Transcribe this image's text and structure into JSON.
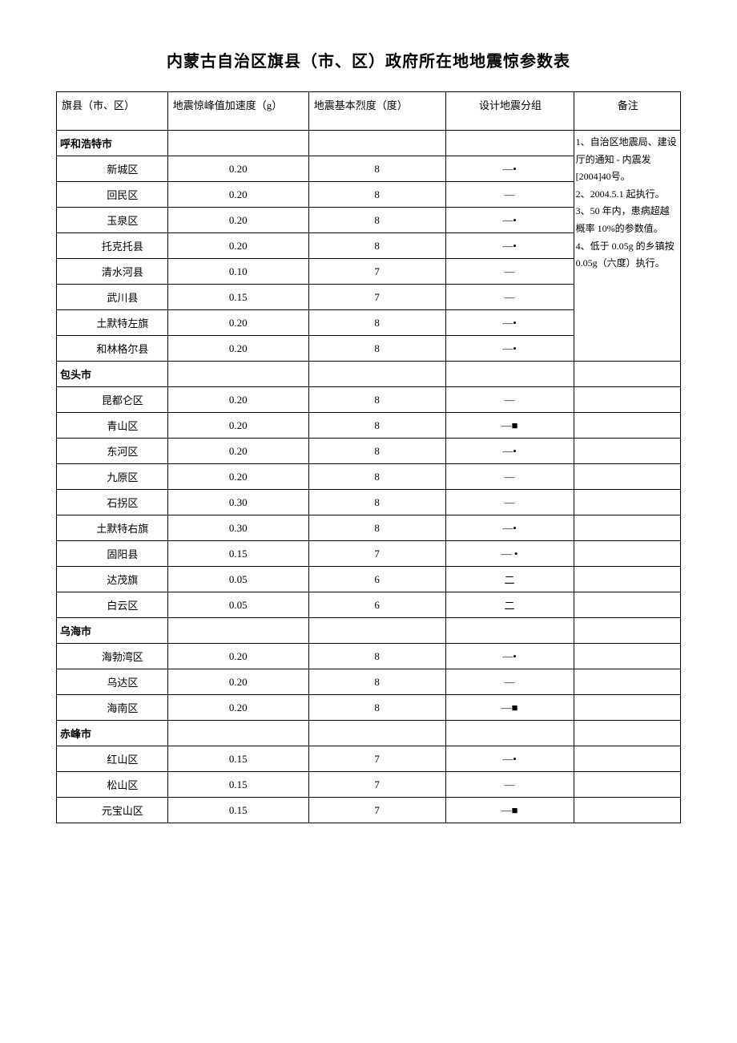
{
  "title": "内蒙古自治区旗县（市、区）政府所在地地震惊参数表",
  "headers": {
    "col1": "旗县（市、区）",
    "col2": "地震惊峰值加速度（g）",
    "col3": "地震基本烈度（度）",
    "col4": "设计地震分组",
    "col5": "备注"
  },
  "notes": "1、自治区地震局、建设厅的通知 - 内震发[2004]40号。\n2、2004.5.1 起执行。\n3、50 年内，患病超越概率 10%的参数值。\n4、低于 0.05g 的乡镇按 0.05g（六度）执行。",
  "sections": [
    {
      "city": "呼和浩特市",
      "rows": [
        {
          "name": "新城区",
          "accel": "0.20",
          "intensity": "8",
          "group": "—•"
        },
        {
          "name": "回民区",
          "accel": "0.20",
          "intensity": "8",
          "group": "—"
        },
        {
          "name": "玉泉区",
          "accel": "0.20",
          "intensity": "8",
          "group": "—•"
        },
        {
          "name": "托克托县",
          "accel": "0.20",
          "intensity": "8",
          "group": "—•"
        },
        {
          "name": "清水河县",
          "accel": "0.10",
          "intensity": "7",
          "group": "—"
        },
        {
          "name": "武川县",
          "accel": "0.15",
          "intensity": "7",
          "group": "—"
        },
        {
          "name": "土默特左旗",
          "accel": "0.20",
          "intensity": "8",
          "group": "—•"
        },
        {
          "name": "和林格尔县",
          "accel": "0.20",
          "intensity": "8",
          "group": "—•"
        }
      ]
    },
    {
      "city": "包头市",
      "rows": [
        {
          "name": "昆都仑区",
          "accel": "0.20",
          "intensity": "8",
          "group": "—"
        },
        {
          "name": "青山区",
          "accel": "0.20",
          "intensity": "8",
          "group": "—■"
        },
        {
          "name": "东河区",
          "accel": "0.20",
          "intensity": "8",
          "group": "—•"
        },
        {
          "name": "九原区",
          "accel": "0.20",
          "intensity": "8",
          "group": "—"
        },
        {
          "name": "石拐区",
          "accel": "0.30",
          "intensity": "8",
          "group": "—"
        },
        {
          "name": "土默特右旗",
          "accel": "0.30",
          "intensity": "8",
          "group": "—•"
        },
        {
          "name": "固阳县",
          "accel": "0.15",
          "intensity": "7",
          "group": "— •"
        },
        {
          "name": "达茂旗",
          "accel": "0.05",
          "intensity": "6",
          "group": "二"
        },
        {
          "name": "白云区",
          "accel": "0.05",
          "intensity": "6",
          "group": "二"
        }
      ]
    },
    {
      "city": "乌海市",
      "rows": [
        {
          "name": "海勃湾区",
          "accel": "0.20",
          "intensity": "8",
          "group": "—•"
        },
        {
          "name": "乌达区",
          "accel": "0.20",
          "intensity": "8",
          "group": "—"
        },
        {
          "name": "海南区",
          "accel": "0.20",
          "intensity": "8",
          "group": "—■"
        }
      ]
    },
    {
      "city": "赤峰市",
      "rows": [
        {
          "name": "红山区",
          "accel": "0.15",
          "intensity": "7",
          "group": "—•"
        },
        {
          "name": "松山区",
          "accel": "0.15",
          "intensity": "7",
          "group": "—"
        },
        {
          "name": "元宝山区",
          "accel": "0.15",
          "intensity": "7",
          "group": "—■"
        }
      ]
    }
  ]
}
